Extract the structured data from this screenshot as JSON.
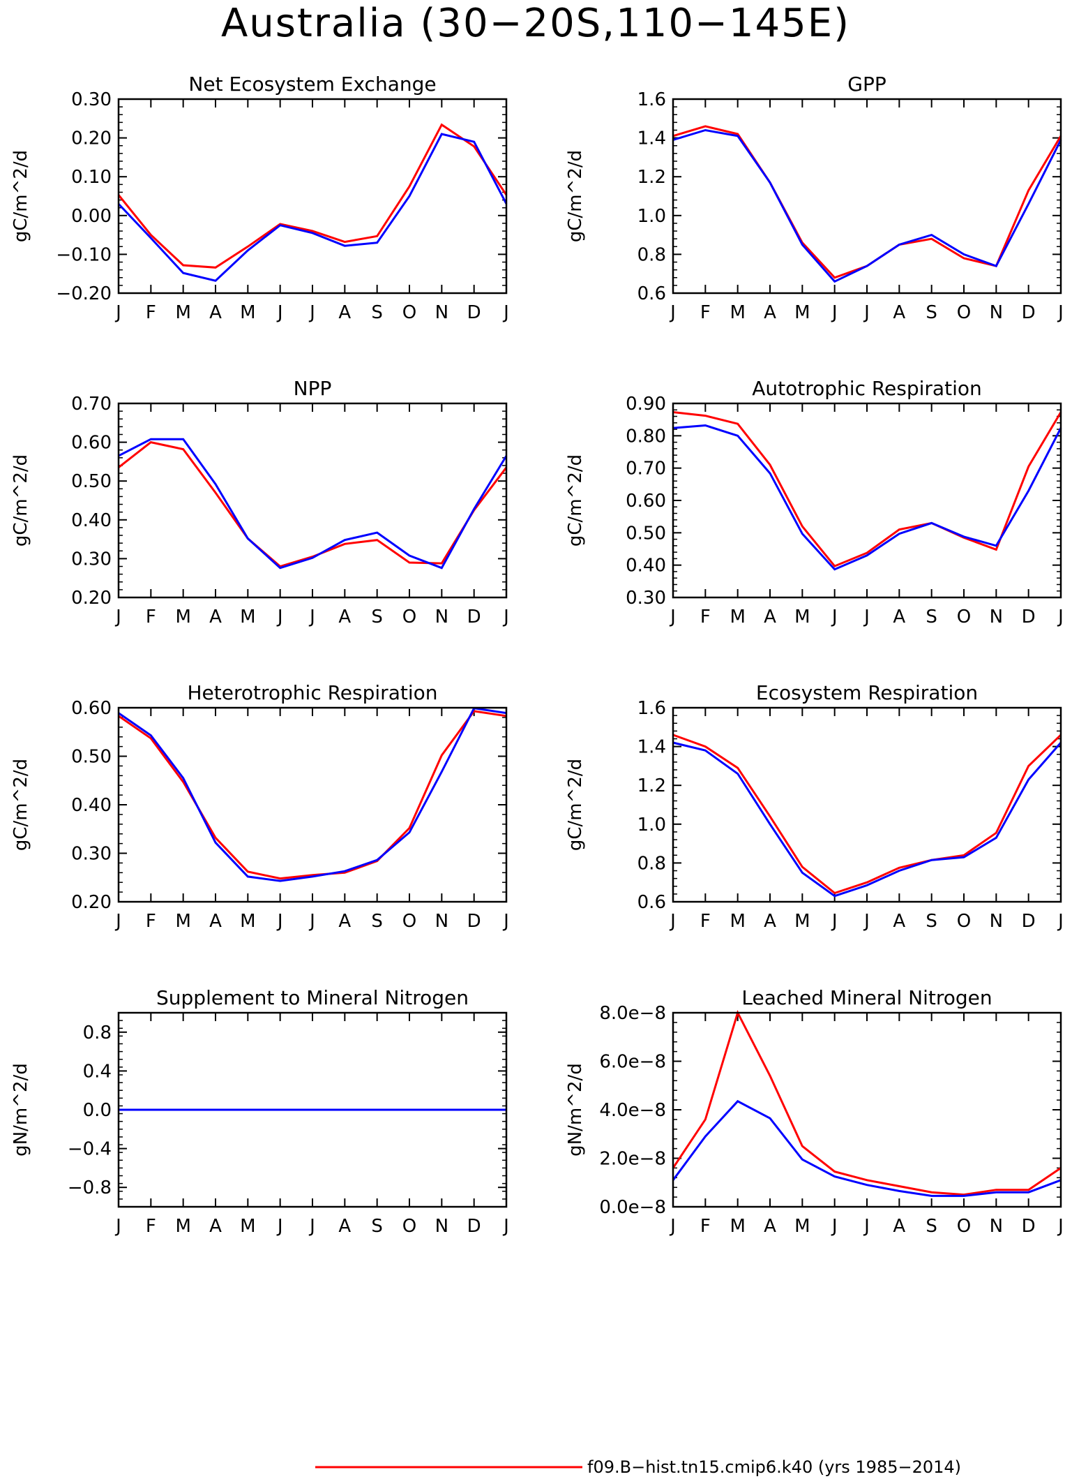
{
  "page_title": "Australia (30−20S,110−145E)",
  "colors": {
    "series_1": "#ff0000",
    "series_2": "#0000ff",
    "axis": "#000000"
  },
  "legend": {
    "series_1_label": "f09.B−hist.tn15.cmip6.k40 (yrs 1985−2014)"
  },
  "chart_data": [
    {
      "type": "line",
      "title": "Net Ecosystem Exchange",
      "ylabel": "gC/m^2/d",
      "categories": [
        "J",
        "F",
        "M",
        "A",
        "M",
        "J",
        "J",
        "A",
        "S",
        "O",
        "N",
        "D",
        "J"
      ],
      "ylim": [
        -0.2,
        0.3
      ],
      "yticks": [
        -0.2,
        -0.1,
        0.0,
        0.1,
        0.2,
        0.3
      ],
      "ytick_labels": [
        "−0.20",
        "−0.10",
        "0.00",
        "0.10",
        "0.20",
        "0.30"
      ],
      "series": [
        {
          "color": "#ff0000",
          "values": [
            0.053,
            -0.05,
            -0.128,
            -0.134,
            -0.08,
            -0.022,
            -0.04,
            -0.068,
            -0.053,
            0.075,
            0.234,
            0.178,
            0.053
          ]
        },
        {
          "color": "#0000ff",
          "values": [
            0.03,
            -0.058,
            -0.148,
            -0.168,
            -0.09,
            -0.025,
            -0.045,
            -0.078,
            -0.07,
            0.05,
            0.21,
            0.19,
            0.03
          ]
        }
      ]
    },
    {
      "type": "line",
      "title": "GPP",
      "ylabel": "gC/m^2/d",
      "categories": [
        "J",
        "F",
        "M",
        "A",
        "M",
        "J",
        "J",
        "A",
        "S",
        "O",
        "N",
        "D",
        "J"
      ],
      "ylim": [
        0.6,
        1.6
      ],
      "yticks": [
        0.6,
        0.8,
        1.0,
        1.2,
        1.4,
        1.6
      ],
      "ytick_labels": [
        "0.6",
        "0.8",
        "1.0",
        "1.2",
        "1.4",
        "1.6"
      ],
      "series": [
        {
          "color": "#ff0000",
          "values": [
            1.41,
            1.46,
            1.42,
            1.17,
            0.86,
            0.68,
            0.74,
            0.85,
            0.88,
            0.78,
            0.74,
            1.13,
            1.41
          ]
        },
        {
          "color": "#0000ff",
          "values": [
            1.39,
            1.44,
            1.41,
            1.17,
            0.85,
            0.66,
            0.74,
            0.85,
            0.9,
            0.8,
            0.74,
            1.06,
            1.39
          ]
        }
      ]
    },
    {
      "type": "line",
      "title": "NPP",
      "ylabel": "gC/m^2/d",
      "categories": [
        "J",
        "F",
        "M",
        "A",
        "M",
        "J",
        "J",
        "A",
        "S",
        "O",
        "N",
        "D",
        "J"
      ],
      "ylim": [
        0.2,
        0.7
      ],
      "yticks": [
        0.2,
        0.3,
        0.4,
        0.5,
        0.6,
        0.7
      ],
      "ytick_labels": [
        "0.20",
        "0.30",
        "0.40",
        "0.50",
        "0.60",
        "0.70"
      ],
      "series": [
        {
          "color": "#ff0000",
          "values": [
            0.535,
            0.6,
            0.582,
            0.47,
            0.352,
            0.28,
            0.305,
            0.338,
            0.348,
            0.29,
            0.288,
            0.425,
            0.535
          ]
        },
        {
          "color": "#0000ff",
          "values": [
            0.565,
            0.608,
            0.608,
            0.492,
            0.352,
            0.276,
            0.302,
            0.348,
            0.367,
            0.308,
            0.276,
            0.428,
            0.565
          ]
        }
      ]
    },
    {
      "type": "line",
      "title": "Autotrophic Respiration",
      "ylabel": "gC/m^2/d",
      "categories": [
        "J",
        "F",
        "M",
        "A",
        "M",
        "J",
        "J",
        "A",
        "S",
        "O",
        "N",
        "D",
        "J"
      ],
      "ylim": [
        0.3,
        0.9
      ],
      "yticks": [
        0.3,
        0.4,
        0.5,
        0.6,
        0.7,
        0.8,
        0.9
      ],
      "ytick_labels": [
        "0.30",
        "0.40",
        "0.50",
        "0.60",
        "0.70",
        "0.80",
        "0.90"
      ],
      "series": [
        {
          "color": "#ff0000",
          "values": [
            0.873,
            0.862,
            0.837,
            0.71,
            0.52,
            0.397,
            0.438,
            0.51,
            0.53,
            0.485,
            0.448,
            0.705,
            0.873
          ]
        },
        {
          "color": "#0000ff",
          "values": [
            0.824,
            0.832,
            0.8,
            0.684,
            0.497,
            0.387,
            0.43,
            0.497,
            0.53,
            0.488,
            0.46,
            0.63,
            0.824
          ]
        }
      ]
    },
    {
      "type": "line",
      "title": "Heterotrophic Respiration",
      "ylabel": "gC/m^2/d",
      "categories": [
        "J",
        "F",
        "M",
        "A",
        "M",
        "J",
        "J",
        "A",
        "S",
        "O",
        "N",
        "D",
        "J"
      ],
      "ylim": [
        0.2,
        0.6
      ],
      "yticks": [
        0.2,
        0.3,
        0.4,
        0.5,
        0.6
      ],
      "ytick_labels": [
        "0.20",
        "0.30",
        "0.40",
        "0.50",
        "0.60"
      ],
      "series": [
        {
          "color": "#ff0000",
          "values": [
            0.583,
            0.537,
            0.447,
            0.332,
            0.262,
            0.248,
            0.255,
            0.26,
            0.284,
            0.352,
            0.502,
            0.593,
            0.583
          ]
        },
        {
          "color": "#0000ff",
          "values": [
            0.589,
            0.543,
            0.455,
            0.322,
            0.252,
            0.243,
            0.252,
            0.263,
            0.286,
            0.343,
            0.468,
            0.599,
            0.589
          ]
        }
      ]
    },
    {
      "type": "line",
      "title": "Ecosystem Respiration",
      "ylabel": "gC/m^2/d",
      "categories": [
        "J",
        "F",
        "M",
        "A",
        "M",
        "J",
        "J",
        "A",
        "S",
        "O",
        "N",
        "D",
        "J"
      ],
      "ylim": [
        0.6,
        1.6
      ],
      "yticks": [
        0.6,
        0.8,
        1.0,
        1.2,
        1.4,
        1.6
      ],
      "ytick_labels": [
        "0.6",
        "0.8",
        "1.0",
        "1.2",
        "1.4",
        "1.6"
      ],
      "series": [
        {
          "color": "#ff0000",
          "values": [
            1.46,
            1.4,
            1.29,
            1.04,
            0.78,
            0.645,
            0.7,
            0.775,
            0.815,
            0.84,
            0.955,
            1.3,
            1.46
          ]
        },
        {
          "color": "#0000ff",
          "values": [
            1.42,
            1.38,
            1.26,
            1.0,
            0.75,
            0.63,
            0.685,
            0.76,
            0.815,
            0.83,
            0.93,
            1.23,
            1.42
          ]
        }
      ]
    },
    {
      "type": "line",
      "title": "Supplement to Mineral Nitrogen",
      "ylabel": "gN/m^2/d",
      "categories": [
        "J",
        "F",
        "M",
        "A",
        "M",
        "J",
        "J",
        "A",
        "S",
        "O",
        "N",
        "D",
        "J"
      ],
      "ylim": [
        -1.0,
        1.0
      ],
      "yticks": [
        -0.8,
        -0.4,
        0.0,
        0.4,
        0.8
      ],
      "ytick_labels": [
        "−0.8",
        "−0.4",
        "0.0",
        "0.4",
        "0.8"
      ],
      "series": [
        {
          "color": "#ff0000",
          "values": [
            0,
            0,
            0,
            0,
            0,
            0,
            0,
            0,
            0,
            0,
            0,
            0,
            0
          ]
        },
        {
          "color": "#0000ff",
          "values": [
            0,
            0,
            0,
            0,
            0,
            0,
            0,
            0,
            0,
            0,
            0,
            0,
            0
          ]
        }
      ]
    },
    {
      "type": "line",
      "title": "Leached Mineral Nitrogen",
      "ylabel": "gN/m^2/d",
      "categories": [
        "J",
        "F",
        "M",
        "A",
        "M",
        "J",
        "J",
        "A",
        "S",
        "O",
        "N",
        "D",
        "J"
      ],
      "ylim": [
        0,
        8e-08
      ],
      "yticks": [
        0,
        2e-08,
        4e-08,
        6e-08,
        8e-08
      ],
      "ytick_labels": [
        "0.0e−8",
        "2.0e−8",
        "4.0e−8",
        "6.0e−8",
        "8.0e−8"
      ],
      "series": [
        {
          "color": "#ff0000",
          "values": [
            1.6e-08,
            3.6e-08,
            8e-08,
            5.4e-08,
            2.5e-08,
            1.45e-08,
            1.1e-08,
            8.5e-09,
            6e-09,
            5e-09,
            7e-09,
            7e-09,
            1.6e-08
          ]
        },
        {
          "color": "#0000ff",
          "values": [
            1.1e-08,
            2.9e-08,
            4.35e-08,
            3.65e-08,
            1.95e-08,
            1.25e-08,
            9e-09,
            6.5e-09,
            4.5e-09,
            4.5e-09,
            6e-09,
            6e-09,
            1.1e-08
          ]
        }
      ]
    }
  ]
}
